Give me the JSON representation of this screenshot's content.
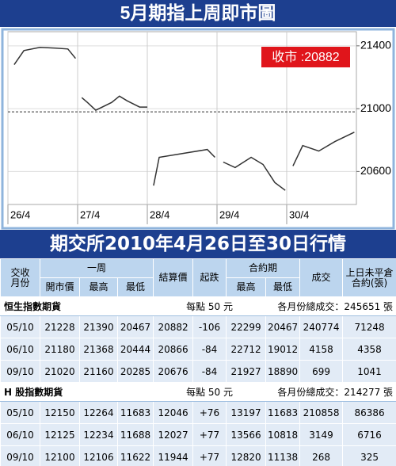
{
  "chart_data": {
    "type": "line",
    "title": "5月期指上周即市圖",
    "annotation": "收市 :20882",
    "x": [
      0.09,
      0.23,
      0.46,
      0.69,
      0.86,
      0.97,
      1.03,
      1.06,
      1.14,
      1.26,
      1.49,
      1.6,
      1.71,
      1.89,
      2.0,
      2.03,
      2.09,
      2.17,
      2.51,
      2.86,
      2.97,
      3.03,
      3.09,
      3.26,
      3.49,
      3.66,
      3.83,
      3.98,
      4.03,
      4.09,
      4.23,
      4.46,
      4.69,
      4.97
    ],
    "values": [
      21280,
      21370,
      21390,
      21385,
      21380,
      21320,
      null,
      21070,
      21040,
      20990,
      21040,
      21080,
      21050,
      21010,
      21010,
      null,
      20510,
      20690,
      20715,
      20740,
      20690,
      null,
      20660,
      20625,
      20690,
      20645,
      20530,
      20480,
      null,
      20635,
      20765,
      20730,
      20790,
      20850
    ],
    "color": "#333333",
    "xlim": [
      0,
      5
    ],
    "xticks": [
      {
        "value": 0,
        "label": "26/4"
      },
      {
        "value": 1,
        "label": "27/4"
      },
      {
        "value": 2,
        "label": "28/4"
      },
      {
        "value": 3,
        "label": "29/4"
      },
      {
        "value": 4,
        "label": "30/4"
      }
    ],
    "ylim": [
      20390,
      21490
    ],
    "yticks": [
      20600,
      21000,
      21400
    ],
    "reference_line": 20980,
    "grid": true
  },
  "table": {
    "title": "期交所2010年4月26日至30日行情",
    "headers": {
      "delivery": [
        "交收",
        "月份"
      ],
      "week": "一周",
      "open": "開市價",
      "week_high": "最高",
      "week_low": "最低",
      "settle": "結算價",
      "change": "起跌",
      "contract": "合約期",
      "contract_high": "最高",
      "contract_low": "最低",
      "volume": "成交",
      "open_interest": [
        "上日未平倉",
        "合約(張)"
      ]
    },
    "sections": [
      {
        "name": "恒生指數期貨",
        "unit": "每點 50 元",
        "total": "各月份總成交：245651 張",
        "rows": [
          [
            "05/10",
            "21228",
            "21390",
            "20467",
            "20882",
            "-106",
            "22299",
            "20467",
            "240774",
            "71248"
          ],
          [
            "06/10",
            "21180",
            "21368",
            "20444",
            "20866",
            "-84",
            "22712",
            "19012",
            "4158",
            "4358"
          ],
          [
            "09/10",
            "21020",
            "21160",
            "20285",
            "20676",
            "-84",
            "21927",
            "18890",
            "699",
            "1041"
          ]
        ]
      },
      {
        "name": "H 股指數期貨",
        "unit": "每點 50 元",
        "total": "各月份總成交：214277 張",
        "rows": [
          [
            "05/10",
            "12150",
            "12264",
            "11683",
            "12046",
            "+76",
            "13197",
            "11683",
            "210858",
            "86386"
          ],
          [
            "06/10",
            "12125",
            "12234",
            "11688",
            "12027",
            "+77",
            "13566",
            "10818",
            "3149",
            "6716"
          ],
          [
            "09/10",
            "12100",
            "12106",
            "11622",
            "11944",
            "+77",
            "12820",
            "11138",
            "268",
            "325"
          ]
        ]
      }
    ]
  }
}
